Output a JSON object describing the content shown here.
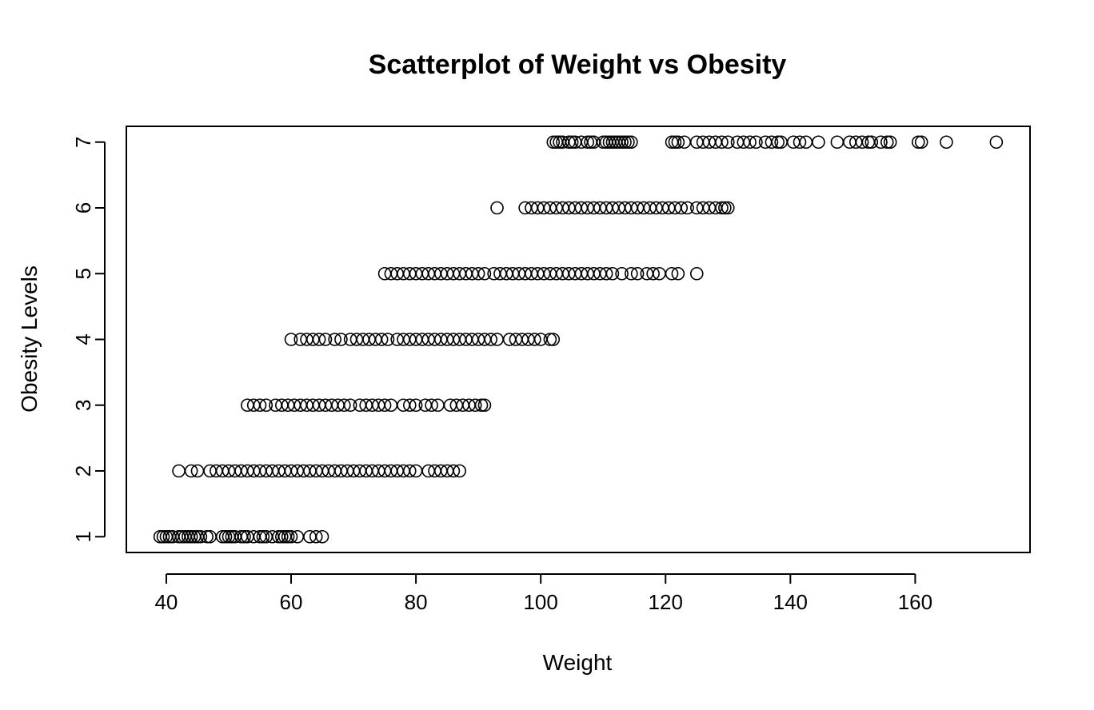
{
  "chart_data": {
    "type": "scatter",
    "title": "Scatterplot of Weight vs Obesity",
    "xlabel": "Weight",
    "ylabel": "Obesity Levels",
    "xlim": [
      33.6,
      178.4
    ],
    "ylim": [
      0.76,
      7.24
    ],
    "x_ticks": [
      40,
      60,
      80,
      100,
      120,
      140,
      160
    ],
    "y_ticks": [
      1,
      2,
      3,
      4,
      5,
      6,
      7
    ],
    "grid": false,
    "legend": "none",
    "point_color": "#000000",
    "series": [
      {
        "values": [
          {
            "x": 39,
            "y": 1
          },
          {
            "x": 39.5,
            "y": 1
          },
          {
            "x": 40,
            "y": 1
          },
          {
            "x": 40.5,
            "y": 1
          },
          {
            "x": 41,
            "y": 1
          },
          {
            "x": 42,
            "y": 1
          },
          {
            "x": 42.5,
            "y": 1
          },
          {
            "x": 43,
            "y": 1
          },
          {
            "x": 43.5,
            "y": 1
          },
          {
            "x": 44,
            "y": 1
          },
          {
            "x": 44.5,
            "y": 1
          },
          {
            "x": 45,
            "y": 1
          },
          {
            "x": 45.5,
            "y": 1
          },
          {
            "x": 46.5,
            "y": 1
          },
          {
            "x": 47,
            "y": 1
          },
          {
            "x": 49,
            "y": 1
          },
          {
            "x": 49.5,
            "y": 1
          },
          {
            "x": 50,
            "y": 1
          },
          {
            "x": 50.5,
            "y": 1
          },
          {
            "x": 51,
            "y": 1
          },
          {
            "x": 52,
            "y": 1
          },
          {
            "x": 52.5,
            "y": 1
          },
          {
            "x": 53,
            "y": 1
          },
          {
            "x": 54,
            "y": 1
          },
          {
            "x": 55,
            "y": 1
          },
          {
            "x": 55.5,
            "y": 1
          },
          {
            "x": 56,
            "y": 1
          },
          {
            "x": 57,
            "y": 1
          },
          {
            "x": 58,
            "y": 1
          },
          {
            "x": 58.5,
            "y": 1
          },
          {
            "x": 59,
            "y": 1
          },
          {
            "x": 59.5,
            "y": 1
          },
          {
            "x": 60,
            "y": 1
          },
          {
            "x": 61,
            "y": 1
          },
          {
            "x": 63,
            "y": 1
          },
          {
            "x": 64,
            "y": 1
          },
          {
            "x": 65,
            "y": 1
          },
          {
            "x": 42,
            "y": 2
          },
          {
            "x": 44,
            "y": 2
          },
          {
            "x": 45,
            "y": 2
          },
          {
            "x": 47,
            "y": 2
          },
          {
            "x": 48,
            "y": 2
          },
          {
            "x": 49,
            "y": 2
          },
          {
            "x": 50,
            "y": 2
          },
          {
            "x": 51,
            "y": 2
          },
          {
            "x": 52,
            "y": 2
          },
          {
            "x": 53,
            "y": 2
          },
          {
            "x": 54,
            "y": 2
          },
          {
            "x": 55,
            "y": 2
          },
          {
            "x": 56,
            "y": 2
          },
          {
            "x": 57,
            "y": 2
          },
          {
            "x": 58,
            "y": 2
          },
          {
            "x": 59,
            "y": 2
          },
          {
            "x": 60,
            "y": 2
          },
          {
            "x": 61,
            "y": 2
          },
          {
            "x": 62,
            "y": 2
          },
          {
            "x": 63,
            "y": 2
          },
          {
            "x": 64,
            "y": 2
          },
          {
            "x": 65,
            "y": 2
          },
          {
            "x": 66,
            "y": 2
          },
          {
            "x": 67,
            "y": 2
          },
          {
            "x": 68,
            "y": 2
          },
          {
            "x": 69,
            "y": 2
          },
          {
            "x": 70,
            "y": 2
          },
          {
            "x": 71,
            "y": 2
          },
          {
            "x": 72,
            "y": 2
          },
          {
            "x": 73,
            "y": 2
          },
          {
            "x": 74,
            "y": 2
          },
          {
            "x": 75,
            "y": 2
          },
          {
            "x": 76,
            "y": 2
          },
          {
            "x": 77,
            "y": 2
          },
          {
            "x": 78,
            "y": 2
          },
          {
            "x": 79,
            "y": 2
          },
          {
            "x": 80,
            "y": 2
          },
          {
            "x": 82,
            "y": 2
          },
          {
            "x": 83,
            "y": 2
          },
          {
            "x": 84,
            "y": 2
          },
          {
            "x": 85,
            "y": 2
          },
          {
            "x": 86,
            "y": 2
          },
          {
            "x": 87,
            "y": 2
          },
          {
            "x": 53,
            "y": 3
          },
          {
            "x": 54,
            "y": 3
          },
          {
            "x": 55,
            "y": 3
          },
          {
            "x": 56,
            "y": 3
          },
          {
            "x": 57.5,
            "y": 3
          },
          {
            "x": 58.5,
            "y": 3
          },
          {
            "x": 59.5,
            "y": 3
          },
          {
            "x": 60.5,
            "y": 3
          },
          {
            "x": 61.5,
            "y": 3
          },
          {
            "x": 62.5,
            "y": 3
          },
          {
            "x": 63.5,
            "y": 3
          },
          {
            "x": 64.5,
            "y": 3
          },
          {
            "x": 65.5,
            "y": 3
          },
          {
            "x": 66.5,
            "y": 3
          },
          {
            "x": 67.5,
            "y": 3
          },
          {
            "x": 68.5,
            "y": 3
          },
          {
            "x": 69.5,
            "y": 3
          },
          {
            "x": 71,
            "y": 3
          },
          {
            "x": 72,
            "y": 3
          },
          {
            "x": 73,
            "y": 3
          },
          {
            "x": 74,
            "y": 3
          },
          {
            "x": 75,
            "y": 3
          },
          {
            "x": 76,
            "y": 3
          },
          {
            "x": 78,
            "y": 3
          },
          {
            "x": 79,
            "y": 3
          },
          {
            "x": 80,
            "y": 3
          },
          {
            "x": 81.5,
            "y": 3
          },
          {
            "x": 82.5,
            "y": 3
          },
          {
            "x": 83.5,
            "y": 3
          },
          {
            "x": 85.5,
            "y": 3
          },
          {
            "x": 86.5,
            "y": 3
          },
          {
            "x": 87.5,
            "y": 3
          },
          {
            "x": 88.5,
            "y": 3
          },
          {
            "x": 89.5,
            "y": 3
          },
          {
            "x": 90.5,
            "y": 3
          },
          {
            "x": 91,
            "y": 3
          },
          {
            "x": 60,
            "y": 4
          },
          {
            "x": 61.5,
            "y": 4
          },
          {
            "x": 62.5,
            "y": 4
          },
          {
            "x": 63.5,
            "y": 4
          },
          {
            "x": 64.5,
            "y": 4
          },
          {
            "x": 65.5,
            "y": 4
          },
          {
            "x": 67,
            "y": 4
          },
          {
            "x": 68,
            "y": 4
          },
          {
            "x": 69.5,
            "y": 4
          },
          {
            "x": 70.5,
            "y": 4
          },
          {
            "x": 71.5,
            "y": 4
          },
          {
            "x": 72.5,
            "y": 4
          },
          {
            "x": 73.5,
            "y": 4
          },
          {
            "x": 74.5,
            "y": 4
          },
          {
            "x": 75.5,
            "y": 4
          },
          {
            "x": 77,
            "y": 4
          },
          {
            "x": 78,
            "y": 4
          },
          {
            "x": 79,
            "y": 4
          },
          {
            "x": 80,
            "y": 4
          },
          {
            "x": 81,
            "y": 4
          },
          {
            "x": 82,
            "y": 4
          },
          {
            "x": 83,
            "y": 4
          },
          {
            "x": 84,
            "y": 4
          },
          {
            "x": 85,
            "y": 4
          },
          {
            "x": 86,
            "y": 4
          },
          {
            "x": 87,
            "y": 4
          },
          {
            "x": 88,
            "y": 4
          },
          {
            "x": 89,
            "y": 4
          },
          {
            "x": 90,
            "y": 4
          },
          {
            "x": 91,
            "y": 4
          },
          {
            "x": 92,
            "y": 4
          },
          {
            "x": 93,
            "y": 4
          },
          {
            "x": 95,
            "y": 4
          },
          {
            "x": 96,
            "y": 4
          },
          {
            "x": 97,
            "y": 4
          },
          {
            "x": 98,
            "y": 4
          },
          {
            "x": 99,
            "y": 4
          },
          {
            "x": 100,
            "y": 4
          },
          {
            "x": 101.5,
            "y": 4
          },
          {
            "x": 102,
            "y": 4
          },
          {
            "x": 75,
            "y": 5
          },
          {
            "x": 76,
            "y": 5
          },
          {
            "x": 77,
            "y": 5
          },
          {
            "x": 78,
            "y": 5
          },
          {
            "x": 79,
            "y": 5
          },
          {
            "x": 80,
            "y": 5
          },
          {
            "x": 81,
            "y": 5
          },
          {
            "x": 82,
            "y": 5
          },
          {
            "x": 83,
            "y": 5
          },
          {
            "x": 84,
            "y": 5
          },
          {
            "x": 85,
            "y": 5
          },
          {
            "x": 86,
            "y": 5
          },
          {
            "x": 87,
            "y": 5
          },
          {
            "x": 88,
            "y": 5
          },
          {
            "x": 89,
            "y": 5
          },
          {
            "x": 90,
            "y": 5
          },
          {
            "x": 91,
            "y": 5
          },
          {
            "x": 92.5,
            "y": 5
          },
          {
            "x": 93.5,
            "y": 5
          },
          {
            "x": 94.5,
            "y": 5
          },
          {
            "x": 95.5,
            "y": 5
          },
          {
            "x": 96.5,
            "y": 5
          },
          {
            "x": 97.5,
            "y": 5
          },
          {
            "x": 98.5,
            "y": 5
          },
          {
            "x": 99.5,
            "y": 5
          },
          {
            "x": 100.5,
            "y": 5
          },
          {
            "x": 101.5,
            "y": 5
          },
          {
            "x": 102.5,
            "y": 5
          },
          {
            "x": 103.5,
            "y": 5
          },
          {
            "x": 104.5,
            "y": 5
          },
          {
            "x": 105.5,
            "y": 5
          },
          {
            "x": 106.5,
            "y": 5
          },
          {
            "x": 107.5,
            "y": 5
          },
          {
            "x": 108.5,
            "y": 5
          },
          {
            "x": 109.5,
            "y": 5
          },
          {
            "x": 110.5,
            "y": 5
          },
          {
            "x": 111.5,
            "y": 5
          },
          {
            "x": 113,
            "y": 5
          },
          {
            "x": 114.5,
            "y": 5
          },
          {
            "x": 115.5,
            "y": 5
          },
          {
            "x": 117,
            "y": 5
          },
          {
            "x": 118,
            "y": 5
          },
          {
            "x": 119,
            "y": 5
          },
          {
            "x": 121,
            "y": 5
          },
          {
            "x": 122,
            "y": 5
          },
          {
            "x": 125,
            "y": 5
          },
          {
            "x": 93,
            "y": 6
          },
          {
            "x": 97.5,
            "y": 6
          },
          {
            "x": 98.5,
            "y": 6
          },
          {
            "x": 99.5,
            "y": 6
          },
          {
            "x": 100.5,
            "y": 6
          },
          {
            "x": 101.5,
            "y": 6
          },
          {
            "x": 102.5,
            "y": 6
          },
          {
            "x": 103.5,
            "y": 6
          },
          {
            "x": 104.5,
            "y": 6
          },
          {
            "x": 105.5,
            "y": 6
          },
          {
            "x": 106.5,
            "y": 6
          },
          {
            "x": 107.5,
            "y": 6
          },
          {
            "x": 108.5,
            "y": 6
          },
          {
            "x": 109.5,
            "y": 6
          },
          {
            "x": 110.5,
            "y": 6
          },
          {
            "x": 111.5,
            "y": 6
          },
          {
            "x": 112.5,
            "y": 6
          },
          {
            "x": 113.5,
            "y": 6
          },
          {
            "x": 114.5,
            "y": 6
          },
          {
            "x": 115.5,
            "y": 6
          },
          {
            "x": 116.5,
            "y": 6
          },
          {
            "x": 117.5,
            "y": 6
          },
          {
            "x": 118.5,
            "y": 6
          },
          {
            "x": 119.5,
            "y": 6
          },
          {
            "x": 120.5,
            "y": 6
          },
          {
            "x": 121.5,
            "y": 6
          },
          {
            "x": 122.5,
            "y": 6
          },
          {
            "x": 123.5,
            "y": 6
          },
          {
            "x": 125,
            "y": 6
          },
          {
            "x": 126,
            "y": 6
          },
          {
            "x": 127,
            "y": 6
          },
          {
            "x": 128,
            "y": 6
          },
          {
            "x": 129,
            "y": 6
          },
          {
            "x": 129.5,
            "y": 6
          },
          {
            "x": 130,
            "y": 6
          },
          {
            "x": 102,
            "y": 7
          },
          {
            "x": 102.5,
            "y": 7
          },
          {
            "x": 103,
            "y": 7
          },
          {
            "x": 103.5,
            "y": 7
          },
          {
            "x": 104.5,
            "y": 7
          },
          {
            "x": 105,
            "y": 7
          },
          {
            "x": 105.5,
            "y": 7
          },
          {
            "x": 106.5,
            "y": 7
          },
          {
            "x": 107.5,
            "y": 7
          },
          {
            "x": 108,
            "y": 7
          },
          {
            "x": 108.5,
            "y": 7
          },
          {
            "x": 110,
            "y": 7
          },
          {
            "x": 110.5,
            "y": 7
          },
          {
            "x": 111,
            "y": 7
          },
          {
            "x": 111.5,
            "y": 7
          },
          {
            "x": 112,
            "y": 7
          },
          {
            "x": 112.5,
            "y": 7
          },
          {
            "x": 113,
            "y": 7
          },
          {
            "x": 113.5,
            "y": 7
          },
          {
            "x": 114,
            "y": 7
          },
          {
            "x": 114.5,
            "y": 7
          },
          {
            "x": 121,
            "y": 7
          },
          {
            "x": 121.5,
            "y": 7
          },
          {
            "x": 122,
            "y": 7
          },
          {
            "x": 123,
            "y": 7
          },
          {
            "x": 125,
            "y": 7
          },
          {
            "x": 126,
            "y": 7
          },
          {
            "x": 127,
            "y": 7
          },
          {
            "x": 128,
            "y": 7
          },
          {
            "x": 129,
            "y": 7
          },
          {
            "x": 130,
            "y": 7
          },
          {
            "x": 131.5,
            "y": 7
          },
          {
            "x": 132.5,
            "y": 7
          },
          {
            "x": 133.5,
            "y": 7
          },
          {
            "x": 134.5,
            "y": 7
          },
          {
            "x": 136,
            "y": 7
          },
          {
            "x": 137,
            "y": 7
          },
          {
            "x": 138,
            "y": 7
          },
          {
            "x": 138.5,
            "y": 7
          },
          {
            "x": 140.5,
            "y": 7
          },
          {
            "x": 141.5,
            "y": 7
          },
          {
            "x": 142.5,
            "y": 7
          },
          {
            "x": 144.5,
            "y": 7
          },
          {
            "x": 147.5,
            "y": 7
          },
          {
            "x": 149.5,
            "y": 7
          },
          {
            "x": 150.5,
            "y": 7
          },
          {
            "x": 151.5,
            "y": 7
          },
          {
            "x": 152.5,
            "y": 7
          },
          {
            "x": 153,
            "y": 7
          },
          {
            "x": 154.5,
            "y": 7
          },
          {
            "x": 155.5,
            "y": 7
          },
          {
            "x": 156,
            "y": 7
          },
          {
            "x": 160.5,
            "y": 7
          },
          {
            "x": 161,
            "y": 7
          },
          {
            "x": 165,
            "y": 7
          },
          {
            "x": 173,
            "y": 7
          }
        ]
      }
    ]
  }
}
